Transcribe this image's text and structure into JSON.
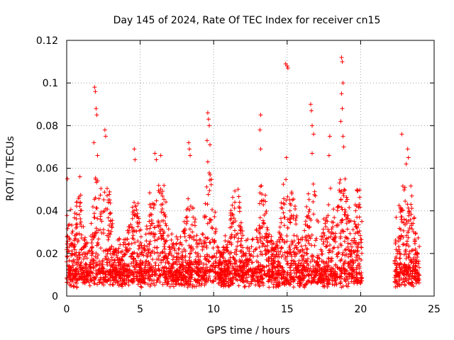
{
  "chart_data": {
    "type": "scatter",
    "title": "Day 145 of 2024, Rate Of TEC Index for receiver cn15",
    "xlabel": "GPS time / hours",
    "ylabel": "ROTI / TECUs",
    "xlim": [
      0,
      25
    ],
    "ylim": [
      0,
      0.12
    ],
    "x_ticks": [
      "0",
      "5",
      "10",
      "15",
      "20",
      "25"
    ],
    "y_ticks": [
      "0",
      "0.02",
      "0.04",
      "0.06",
      "0.08",
      "0.1",
      "0.12"
    ],
    "grid": true,
    "marker": "+",
    "color": "#ff0000",
    "data_gap_hours": [
      20.1,
      22.3
    ],
    "series": [
      {
        "name": "ROTI",
        "notable_points": [
          {
            "x": 1.9,
            "y": 0.098
          },
          {
            "x": 1.95,
            "y": 0.096
          },
          {
            "x": 2.0,
            "y": 0.088
          },
          {
            "x": 2.05,
            "y": 0.085
          },
          {
            "x": 1.85,
            "y": 0.072
          },
          {
            "x": 2.1,
            "y": 0.066
          },
          {
            "x": 2.6,
            "y": 0.078
          },
          {
            "x": 2.65,
            "y": 0.075
          },
          {
            "x": 0.05,
            "y": 0.055
          },
          {
            "x": 0.9,
            "y": 0.056
          },
          {
            "x": 4.6,
            "y": 0.069
          },
          {
            "x": 4.65,
            "y": 0.064
          },
          {
            "x": 6.0,
            "y": 0.067
          },
          {
            "x": 6.1,
            "y": 0.064
          },
          {
            "x": 6.4,
            "y": 0.066
          },
          {
            "x": 8.3,
            "y": 0.072
          },
          {
            "x": 8.35,
            "y": 0.069
          },
          {
            "x": 8.4,
            "y": 0.066
          },
          {
            "x": 9.6,
            "y": 0.086
          },
          {
            "x": 9.65,
            "y": 0.083
          },
          {
            "x": 9.7,
            "y": 0.08
          },
          {
            "x": 9.55,
            "y": 0.073
          },
          {
            "x": 9.75,
            "y": 0.071
          },
          {
            "x": 9.6,
            "y": 0.063
          },
          {
            "x": 13.2,
            "y": 0.085
          },
          {
            "x": 13.15,
            "y": 0.078
          },
          {
            "x": 13.2,
            "y": 0.069
          },
          {
            "x": 14.9,
            "y": 0.109
          },
          {
            "x": 15.0,
            "y": 0.108
          },
          {
            "x": 15.05,
            "y": 0.107
          },
          {
            "x": 14.95,
            "y": 0.065
          },
          {
            "x": 16.6,
            "y": 0.09
          },
          {
            "x": 16.65,
            "y": 0.087
          },
          {
            "x": 16.7,
            "y": 0.08
          },
          {
            "x": 16.8,
            "y": 0.076
          },
          {
            "x": 16.7,
            "y": 0.067
          },
          {
            "x": 17.9,
            "y": 0.075
          },
          {
            "x": 17.85,
            "y": 0.066
          },
          {
            "x": 18.7,
            "y": 0.112
          },
          {
            "x": 18.75,
            "y": 0.11
          },
          {
            "x": 18.8,
            "y": 0.1
          },
          {
            "x": 18.7,
            "y": 0.095
          },
          {
            "x": 18.75,
            "y": 0.088
          },
          {
            "x": 18.65,
            "y": 0.082
          },
          {
            "x": 18.8,
            "y": 0.075
          },
          {
            "x": 18.85,
            "y": 0.07
          },
          {
            "x": 22.8,
            "y": 0.076
          },
          {
            "x": 23.2,
            "y": 0.069
          },
          {
            "x": 23.25,
            "y": 0.065
          },
          {
            "x": 23.1,
            "y": 0.062
          }
        ]
      }
    ]
  }
}
